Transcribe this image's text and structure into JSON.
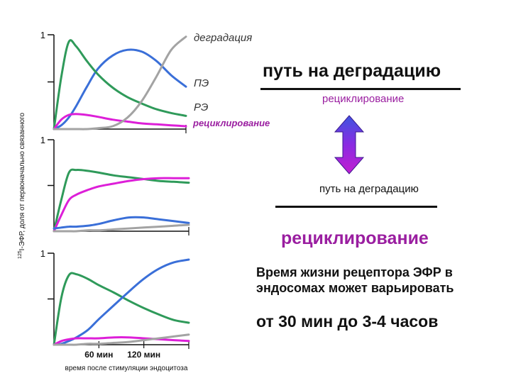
{
  "chart_data": [
    {
      "type": "line",
      "panel": 1,
      "ytick_labels": [
        "1"
      ],
      "ylim": [
        0,
        1
      ],
      "x": [
        0,
        10,
        20,
        30,
        45,
        60,
        80,
        100,
        120,
        140,
        160,
        180
      ],
      "series": [
        {
          "name": "ПЭ",
          "color": "#3a6fd8",
          "values": [
            0.0,
            0.04,
            0.12,
            0.24,
            0.45,
            0.64,
            0.78,
            0.84,
            0.82,
            0.72,
            0.57,
            0.45
          ]
        },
        {
          "name": "РЭ",
          "color": "#2f9a5a",
          "values": [
            0.0,
            0.55,
            0.92,
            0.88,
            0.72,
            0.58,
            0.44,
            0.34,
            0.27,
            0.21,
            0.17,
            0.14
          ]
        },
        {
          "name": "рециклирование",
          "color": "#dd1fd8",
          "values": [
            0.0,
            0.1,
            0.15,
            0.16,
            0.15,
            0.13,
            0.1,
            0.08,
            0.06,
            0.05,
            0.04,
            0.03
          ]
        },
        {
          "name": "деградация",
          "color": "#a3a3a3",
          "values": [
            0.0,
            0.0,
            0.0,
            0.0,
            0.0,
            0.01,
            0.03,
            0.12,
            0.3,
            0.56,
            0.84,
            0.98
          ]
        }
      ]
    },
    {
      "type": "line",
      "panel": 2,
      "ytick_labels": [
        "1"
      ],
      "ylim": [
        0,
        1
      ],
      "x": [
        0,
        10,
        20,
        30,
        45,
        60,
        80,
        100,
        120,
        140,
        160,
        180
      ],
      "series": [
        {
          "color": "#2f9a5a",
          "values": [
            0.0,
            0.35,
            0.64,
            0.67,
            0.66,
            0.64,
            0.61,
            0.59,
            0.57,
            0.55,
            0.54,
            0.53
          ]
        },
        {
          "color": "#dd1fd8",
          "values": [
            0.0,
            0.18,
            0.34,
            0.4,
            0.45,
            0.49,
            0.52,
            0.55,
            0.57,
            0.58,
            0.58,
            0.58
          ]
        },
        {
          "color": "#3a6fd8",
          "values": [
            0.03,
            0.04,
            0.05,
            0.05,
            0.06,
            0.08,
            0.12,
            0.15,
            0.15,
            0.13,
            0.11,
            0.09
          ]
        },
        {
          "color": "#a3a3a3",
          "values": [
            0.0,
            0.0,
            0.0,
            0.0,
            0.01,
            0.01,
            0.02,
            0.03,
            0.04,
            0.05,
            0.06,
            0.07
          ]
        }
      ]
    },
    {
      "type": "line",
      "panel": 3,
      "ytick_labels": [
        "1"
      ],
      "ylim": [
        0,
        1
      ],
      "x": [
        0,
        10,
        20,
        30,
        45,
        60,
        80,
        100,
        120,
        140,
        160,
        180
      ],
      "xtick_values": [
        60,
        120
      ],
      "xtick_labels": [
        "60 мин",
        "120 мин"
      ],
      "xlabel": "время после стимуляции эндоцитоза",
      "ylabel": "125I-ЭФР, доля от первоначально связанного",
      "series": [
        {
          "color": "#2f9a5a",
          "values": [
            0.0,
            0.52,
            0.76,
            0.77,
            0.72,
            0.65,
            0.57,
            0.48,
            0.4,
            0.33,
            0.27,
            0.24
          ]
        },
        {
          "color": "#3a6fd8",
          "values": [
            0.0,
            0.01,
            0.04,
            0.08,
            0.16,
            0.28,
            0.43,
            0.58,
            0.72,
            0.83,
            0.9,
            0.93
          ]
        },
        {
          "color": "#dd1fd8",
          "values": [
            0.0,
            0.04,
            0.06,
            0.07,
            0.07,
            0.07,
            0.08,
            0.08,
            0.07,
            0.06,
            0.05,
            0.04
          ]
        },
        {
          "color": "#a3a3a3",
          "values": [
            0.0,
            0.0,
            0.0,
            0.0,
            0.01,
            0.01,
            0.02,
            0.03,
            0.05,
            0.07,
            0.09,
            0.11
          ]
        }
      ]
    }
  ],
  "side": {
    "title": "путь на деградацию",
    "recycling_small": "рециклирование",
    "degradation_small": "путь на деградацию",
    "recycling_big": "рециклирование",
    "lifetime": "Время жизни рецептора ЭФР в эндосомах может варьировать",
    "range": "от 30 мин до 3-4 часов",
    "arrow_color": "#8a2be2"
  }
}
